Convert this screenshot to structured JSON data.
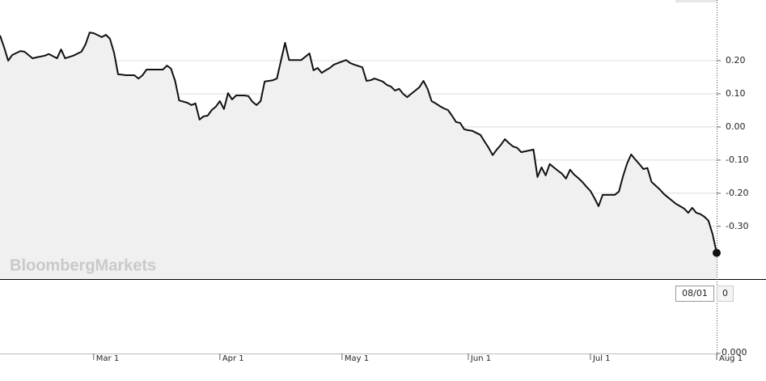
{
  "chart_data": {
    "type": "line",
    "watermark": "BloombergMarkets",
    "x": [
      "02-06",
      "02-07",
      "02-08",
      "02-09",
      "02-11",
      "02-12",
      "02-14",
      "02-15",
      "02-17",
      "02-18",
      "02-20",
      "02-21",
      "02-22",
      "02-24",
      "02-26",
      "02-27",
      "02-28",
      "03-01",
      "03-03",
      "03-04",
      "03-05",
      "03-06",
      "03-07",
      "03-09",
      "03-11",
      "03-12",
      "03-13",
      "03-14",
      "03-16",
      "03-18",
      "03-19",
      "03-20",
      "03-21",
      "03-22",
      "03-24",
      "03-25",
      "03-26",
      "03-27",
      "03-28",
      "03-29",
      "03-30",
      "03-31",
      "04-01",
      "04-02",
      "04-03",
      "04-04",
      "04-05",
      "04-07",
      "04-08",
      "04-09",
      "04-10",
      "04-11",
      "04-12",
      "04-14",
      "04-15",
      "04-17",
      "04-18",
      "04-19",
      "04-21",
      "04-23",
      "04-24",
      "04-25",
      "04-26",
      "04-27",
      "04-28",
      "04-29",
      "04-30",
      "05-02",
      "05-03",
      "05-04",
      "05-06",
      "05-07",
      "05-08",
      "05-09",
      "05-11",
      "05-12",
      "05-13",
      "05-14",
      "05-15",
      "05-16",
      "05-17",
      "05-18",
      "05-19",
      "05-20",
      "05-21",
      "05-22",
      "05-23",
      "05-24",
      "05-25",
      "05-26",
      "05-27",
      "05-28",
      "05-29",
      "05-30",
      "05-31",
      "06-01",
      "06-02",
      "06-04",
      "06-05",
      "06-06",
      "06-07",
      "06-08",
      "06-09",
      "06-10",
      "06-11",
      "06-12",
      "06-13",
      "06-14",
      "06-16",
      "06-17",
      "06-18",
      "06-19",
      "06-20",
      "06-21",
      "06-22",
      "06-23",
      "06-24",
      "06-25",
      "06-26",
      "06-27",
      "06-28",
      "06-29",
      "06-30",
      "07-01",
      "07-02",
      "07-03",
      "07-04",
      "07-06",
      "07-07",
      "07-08",
      "07-09",
      "07-10",
      "07-11",
      "07-12",
      "07-13",
      "07-14",
      "07-15",
      "07-16",
      "07-18",
      "07-19",
      "07-20",
      "07-21",
      "07-22",
      "07-24",
      "07-25",
      "07-26",
      "07-27",
      "07-28",
      "07-29",
      "07-30",
      "07-31",
      "08-01"
    ],
    "series": [
      {
        "color": "#111111",
        "values": [
          0.276,
          0.241,
          0.2,
          0.217,
          0.229,
          0.227,
          0.207,
          0.21,
          0.215,
          0.22,
          0.207,
          0.234,
          0.207,
          0.215,
          0.227,
          0.249,
          0.285,
          0.283,
          0.271,
          0.278,
          0.266,
          0.224,
          0.159,
          0.156,
          0.156,
          0.146,
          0.156,
          0.173,
          0.173,
          0.173,
          0.185,
          0.176,
          0.139,
          0.08,
          0.073,
          0.066,
          0.071,
          0.022,
          0.032,
          0.034,
          0.051,
          0.061,
          0.078,
          0.054,
          0.102,
          0.083,
          0.095,
          0.095,
          0.093,
          0.076,
          0.066,
          0.078,
          0.137,
          0.141,
          0.146,
          0.254,
          0.202,
          0.202,
          0.202,
          0.222,
          0.171,
          0.178,
          0.163,
          0.171,
          0.178,
          0.188,
          0.193,
          0.202,
          0.193,
          0.188,
          0.18,
          0.139,
          0.141,
          0.146,
          0.137,
          0.127,
          0.122,
          0.11,
          0.115,
          0.1,
          0.09,
          0.1,
          0.11,
          0.12,
          0.139,
          0.115,
          0.078,
          0.071,
          0.063,
          0.056,
          0.051,
          0.034,
          0.015,
          0.012,
          -0.007,
          -0.01,
          -0.012,
          -0.024,
          -0.044,
          -0.063,
          -0.085,
          -0.068,
          -0.054,
          -0.037,
          -0.049,
          -0.059,
          -0.063,
          -0.076,
          -0.071,
          -0.068,
          -0.151,
          -0.122,
          -0.146,
          -0.112,
          -0.122,
          -0.132,
          -0.141,
          -0.156,
          -0.129,
          -0.144,
          -0.154,
          -0.166,
          -0.18,
          -0.193,
          -0.215,
          -0.239,
          -0.205,
          -0.205,
          -0.205,
          -0.195,
          -0.149,
          -0.11,
          -0.083,
          -0.098,
          -0.112,
          -0.127,
          -0.124,
          -0.166,
          -0.188,
          -0.202,
          -0.212,
          -0.222,
          -0.232,
          -0.246,
          -0.259,
          -0.244,
          -0.259,
          -0.263,
          -0.271,
          -0.283,
          -0.324,
          -0.38
        ]
      }
    ],
    "area_color": "#f0f0f0",
    "end_marker": true,
    "xlim": [
      "02-06",
      "08-01"
    ],
    "xticks": [
      {
        "value": "03-01",
        "label": "Mar 1"
      },
      {
        "value": "04-01",
        "label": "Apr 1"
      },
      {
        "value": "05-01",
        "label": "May 1"
      },
      {
        "value": "06-01",
        "label": "Jun 1"
      },
      {
        "value": "07-01",
        "label": "Jul 1"
      },
      {
        "value": "08-01",
        "label": "Aug 1"
      }
    ],
    "ylim": [
      -0.459,
      0.383
    ],
    "yticks": [
      {
        "value": 0.2,
        "label": "0.20"
      },
      {
        "value": 0.1,
        "label": "0.10"
      },
      {
        "value": 0,
        "label": "0.00"
      },
      {
        "value": -0.1,
        "label": "-0.10"
      },
      {
        "value": -0.2,
        "label": "-0.20"
      },
      {
        "value": -0.3,
        "label": "-0.30"
      }
    ],
    "grid": true,
    "lower_panel": {
      "yticks": [
        {
          "value": 0,
          "label": "0.000"
        }
      ],
      "cursor_date": "08/01",
      "cursor_value": 0
    }
  }
}
